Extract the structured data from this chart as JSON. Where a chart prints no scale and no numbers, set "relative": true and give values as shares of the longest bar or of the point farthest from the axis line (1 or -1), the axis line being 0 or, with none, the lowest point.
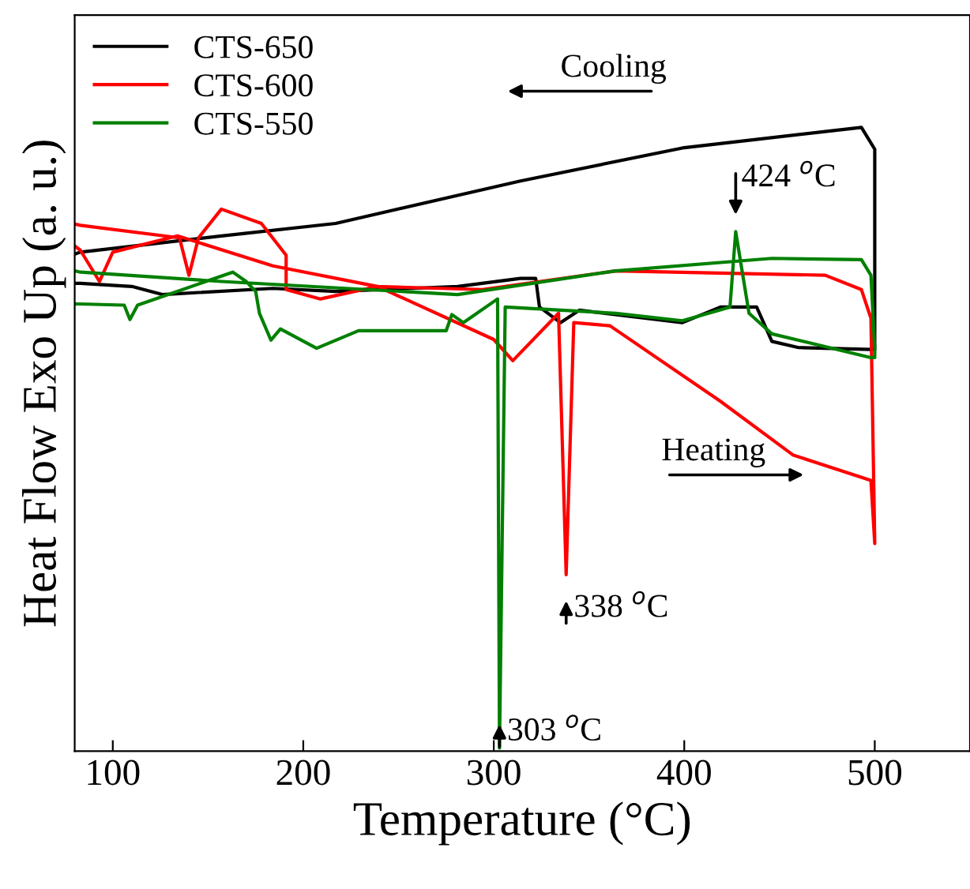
{
  "chart_data": {
    "type": "line",
    "xlabel": "Temperature (°C)",
    "ylabel": "Heat Flow Exo Up (a. u.)",
    "relative": true,
    "xlim": [
      80,
      550
    ],
    "xticks": [
      100,
      200,
      300,
      400,
      500
    ],
    "legend": "top left",
    "grid": false,
    "marker": "none",
    "line_style": "solid",
    "annotations": [
      {
        "text": "424 $^{o}$C",
        "x": 427,
        "y": 0.833
      },
      {
        "text": "338 $^{o}$C",
        "x": 338,
        "y": 0.283
      },
      {
        "text": "303 $^{o}$C",
        "x": 303,
        "y": 0.005
      },
      "Cooling",
      "Heating"
    ],
    "series": [
      {
        "name": "CTS-650",
        "color": "#000000",
        "x": [
          80,
          83,
          110,
          126,
          184,
          217,
          281,
          314,
          322,
          324,
          335,
          345,
          399,
          419,
          438,
          446,
          460,
          498,
          500,
          500,
          493,
          399,
          314,
          281,
          217,
          157,
          83,
          80
        ],
        "values": [
          0.75,
          0.75,
          0.745,
          0.732,
          0.742,
          0.737,
          0.745,
          0.758,
          0.758,
          0.712,
          0.687,
          0.707,
          0.687,
          0.712,
          0.712,
          0.657,
          0.647,
          0.644,
          0.644,
          0.965,
          1.0,
          0.967,
          0.914,
          0.891,
          0.846,
          0.826,
          0.8,
          0.797
        ]
      },
      {
        "name": "CTS-600",
        "color": "#ff0000",
        "x": [
          80,
          83,
          93,
          100,
          134,
          184,
          239,
          300,
          310,
          334,
          338,
          342,
          361,
          419,
          457,
          498,
          500,
          500,
          498,
          493,
          474,
          364,
          294,
          239,
          209,
          191,
          191,
          178,
          157,
          145,
          140,
          135,
          83,
          80
        ],
        "values": [
          0.81,
          0.803,
          0.753,
          0.8,
          0.826,
          0.778,
          0.745,
          0.66,
          0.626,
          0.702,
          0.283,
          0.687,
          0.682,
          0.561,
          0.475,
          0.434,
          0.333,
          0.333,
          0.694,
          0.74,
          0.763,
          0.77,
          0.74,
          0.745,
          0.725,
          0.74,
          0.795,
          0.846,
          0.869,
          0.823,
          0.763,
          0.823,
          0.843,
          0.845
        ]
      },
      {
        "name": "CTS-550",
        "color": "#008000",
        "x": [
          80,
          83,
          106,
          109,
          113,
          163,
          170,
          175,
          177,
          183,
          188,
          207,
          229,
          275,
          278,
          284,
          302,
          303,
          306,
          364,
          399,
          424,
          427,
          434,
          446,
          498,
          500,
          500,
          498,
          493,
          446,
          364,
          281,
          157,
          83,
          80
        ],
        "values": [
          0.717,
          0.717,
          0.715,
          0.692,
          0.715,
          0.768,
          0.753,
          0.737,
          0.702,
          0.659,
          0.677,
          0.646,
          0.674,
          0.674,
          0.7,
          0.687,
          0.725,
          0.005,
          0.712,
          0.702,
          0.69,
          0.712,
          0.833,
          0.702,
          0.669,
          0.631,
          0.631,
          0.644,
          0.763,
          0.788,
          0.79,
          0.77,
          0.732,
          0.753,
          0.768,
          0.77
        ]
      }
    ]
  }
}
